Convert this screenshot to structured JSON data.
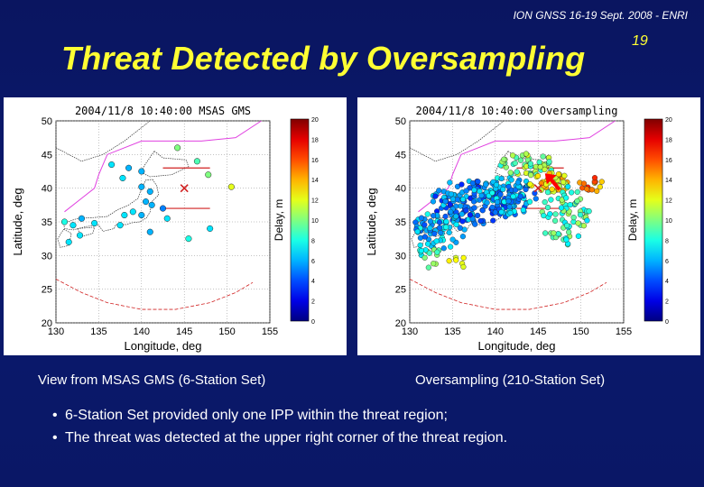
{
  "header": {
    "conference": "ION GNSS 16-19 Sept. 2008 - ENRI",
    "slide_number": "19"
  },
  "title": "Threat Detected by Oversampling",
  "colors": {
    "title": "#ffff33",
    "background": "#0b1a6e",
    "threat_arrow": "#ff0000"
  },
  "chart_data": [
    {
      "type": "scatter",
      "title": "2004/11/8 10:40:00 MSAS GMS",
      "xlabel": "Longitude, deg",
      "ylabel": "Latitude, deg",
      "xlim": [
        130,
        155
      ],
      "ylim": [
        20,
        50
      ],
      "xticks": [
        "130",
        "135",
        "140",
        "145",
        "150",
        "155"
      ],
      "yticks": [
        "20",
        "25",
        "30",
        "35",
        "40",
        "45",
        "50"
      ],
      "colorbar": {
        "label": "Delay, m",
        "range": [
          0,
          20
        ],
        "ticks": [
          "0",
          "2",
          "4",
          "6",
          "8",
          "10",
          "12",
          "14",
          "16",
          "18",
          "20"
        ]
      },
      "threat_center": [
        145,
        40
      ],
      "points": [
        {
          "x": 136.5,
          "y": 43.5,
          "d": 7
        },
        {
          "x": 138.5,
          "y": 43.0,
          "d": 6
        },
        {
          "x": 137.8,
          "y": 41.5,
          "d": 7
        },
        {
          "x": 140.0,
          "y": 40.2,
          "d": 6
        },
        {
          "x": 141.0,
          "y": 39.5,
          "d": 6
        },
        {
          "x": 140.5,
          "y": 38.0,
          "d": 6
        },
        {
          "x": 141.2,
          "y": 37.5,
          "d": 6
        },
        {
          "x": 139.0,
          "y": 36.5,
          "d": 7
        },
        {
          "x": 140.0,
          "y": 36.0,
          "d": 6
        },
        {
          "x": 138.0,
          "y": 36.0,
          "d": 7
        },
        {
          "x": 142.5,
          "y": 37.0,
          "d": 5
        },
        {
          "x": 143.0,
          "y": 35.5,
          "d": 7
        },
        {
          "x": 137.5,
          "y": 34.5,
          "d": 7
        },
        {
          "x": 134.5,
          "y": 34.8,
          "d": 7
        },
        {
          "x": 133.0,
          "y": 35.5,
          "d": 6
        },
        {
          "x": 132.0,
          "y": 34.5,
          "d": 7
        },
        {
          "x": 132.8,
          "y": 33.0,
          "d": 7
        },
        {
          "x": 131.5,
          "y": 32.0,
          "d": 7
        },
        {
          "x": 131.0,
          "y": 35.0,
          "d": 8
        },
        {
          "x": 144.2,
          "y": 46.0,
          "d": 10
        },
        {
          "x": 146.5,
          "y": 44.0,
          "d": 9
        },
        {
          "x": 147.8,
          "y": 42.0,
          "d": 10
        },
        {
          "x": 150.5,
          "y": 40.2,
          "d": 12
        },
        {
          "x": 140.0,
          "y": 42.5,
          "d": 6
        },
        {
          "x": 145.5,
          "y": 32.5,
          "d": 8
        },
        {
          "x": 141.0,
          "y": 33.5,
          "d": 6
        },
        {
          "x": 148.0,
          "y": 34.0,
          "d": 7
        }
      ]
    },
    {
      "type": "scatter",
      "title": "2004/11/8 10:40:00 Oversampling",
      "xlabel": "Longitude, deg",
      "ylabel": "Latitude, deg",
      "xlim": [
        130,
        155
      ],
      "ylim": [
        20,
        50
      ],
      "xticks": [
        "130",
        "135",
        "140",
        "145",
        "150",
        "155"
      ],
      "yticks": [
        "20",
        "25",
        "30",
        "35",
        "40",
        "45",
        "50"
      ],
      "colorbar": {
        "label": "Delay, m",
        "range": [
          0,
          20
        ],
        "ticks": [
          "0",
          "2",
          "4",
          "6",
          "8",
          "10",
          "12",
          "14",
          "16",
          "18",
          "20"
        ]
      },
      "threat_center": [
        145,
        40
      ],
      "threat_arrow": {
        "from": [
          147.5,
          39.8
        ],
        "to": [
          145.8,
          42.2
        ]
      }
    }
  ],
  "captions": {
    "left": "View from MSAS GMS (6-Station Set)",
    "right": "Oversampling (210-Station Set)"
  },
  "bullets": [
    "6-Station Set provided only one IPP within the threat region;",
    "The threat was detected at the upper right corner of the threat region."
  ]
}
